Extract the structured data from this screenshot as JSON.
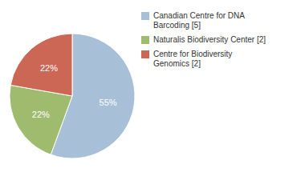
{
  "chart_data": {
    "type": "pie",
    "categories": [
      "Canadian Centre for DNA\nBarcoding [5]",
      "Naturalis Biodiversity Center [2]",
      "Centre for Biodiversity\nGenomics [2]"
    ],
    "values": [
      55,
      22,
      22
    ],
    "value_labels": [
      "55%",
      "22%",
      "22%"
    ],
    "colors": [
      "#a8bfd8",
      "#9fbb6e",
      "#cc6655"
    ],
    "data_labels": true,
    "legend": "right"
  }
}
